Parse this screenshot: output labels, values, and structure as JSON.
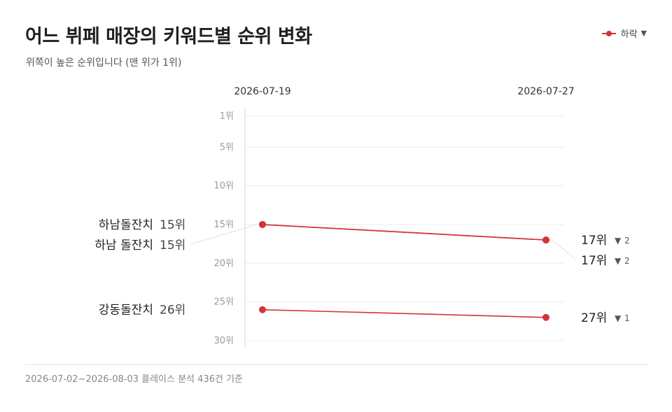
{
  "header": {
    "title": "어느 뷔페 매장의 키워드별 순위 변화",
    "subtitle": "위쪽이 높은 순위입니다 (맨 위가 1위)"
  },
  "legend": {
    "label": "하락",
    "marker": "▼",
    "color": "#d1343a"
  },
  "footer": {
    "note": "2026-07-02~2026-08-03 플레이스 분석 436건 기준"
  },
  "chart_data": {
    "type": "line",
    "subtype": "slope",
    "x": [
      "2026-07-19",
      "2026-07-27"
    ],
    "y_axis": {
      "ticks": [
        1,
        5,
        10,
        15,
        20,
        25,
        30
      ],
      "tick_labels": [
        "1위",
        "5위",
        "10위",
        "15위",
        "20위",
        "25위",
        "30위"
      ],
      "range": [
        1,
        30
      ],
      "inverted": true
    },
    "grid": true,
    "series": [
      {
        "start": 15,
        "end": 17,
        "start_label": "하남돌잔치",
        "start_text": "15위",
        "end_text": "17위",
        "change": "2",
        "change_marker": "▼",
        "color": "#d1343a"
      },
      {
        "start": 15,
        "end": 17,
        "start_label": "하남 돌잔치",
        "start_text": "15위",
        "end_text": "17위",
        "change": "2",
        "change_marker": "▼",
        "color": "#d1343a"
      },
      {
        "start": 26,
        "end": 27,
        "start_label": "강동돌잔치",
        "start_text": "26위",
        "end_text": "27위",
        "change": "1",
        "change_marker": "▼",
        "color": "#d1343a"
      }
    ]
  }
}
